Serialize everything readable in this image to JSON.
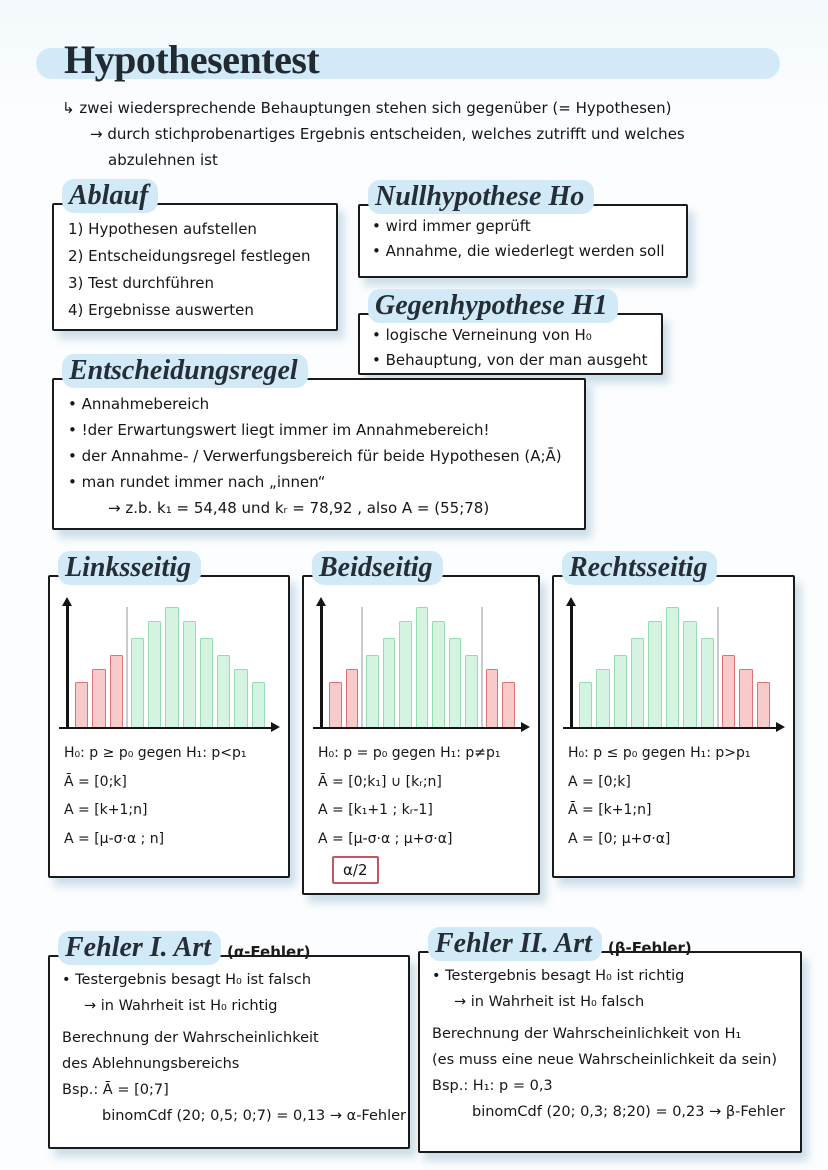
{
  "title": "Hypothesentest",
  "intro": {
    "line1": "↳ zwei wiedersprechende Behauptungen stehen sich gegenüber (= Hypothesen)",
    "line2": "→ durch stichprobenartiges Ergebnis entscheiden, welches zutrifft und welches",
    "line3": "abzulehnen ist"
  },
  "ablauf": {
    "heading": "Ablauf",
    "items": [
      "1) Hypothesen aufstellen",
      "2) Entscheidungsregel festlegen",
      "3) Test durchführen",
      "4) Ergebnisse auswerten"
    ]
  },
  "nullhypothese": {
    "heading": "Nullhypothese Ho",
    "items": [
      "• wird immer geprüft",
      "• Annahme, die wiederlegt werden soll"
    ]
  },
  "gegenhypothese": {
    "heading": "Gegenhypothese H1",
    "items": [
      "• logische Verneinung von H₀",
      "• Behauptung, von der man ausgeht"
    ]
  },
  "entscheidungsregel": {
    "heading": "Entscheidungsregel",
    "items": [
      "• Annahmebereich",
      "• !der Erwartungswert liegt immer im Annahmebereich!",
      "• der Annahme- / Verwerfungsbereich für beide Hypothesen (A;Ā)",
      "• man rundet immer nach „innen“"
    ],
    "example": "→ z.b.  k₁ = 54,48  und kᵣ = 78,92 , also  A = (55;78)"
  },
  "tests": {
    "links": {
      "heading": "Linksseitig",
      "hypothesis": "H₀: p ≥ p₀  gegen  H₁: p<p₁",
      "lines": [
        "Ā = [0;k]",
        "A = [k+1;n]",
        "A = [μ-σ·α ; n]"
      ]
    },
    "beid": {
      "heading": "Beidseitig",
      "hypothesis": "H₀: p = p₀  gegen  H₁: p≠p₁",
      "lines": [
        "Ā = [0;k₁] ∪ [kᵣ;n]",
        "A = [k₁+1 ; kᵣ-1]",
        "A = [μ-σ·α ; μ+σ·α]"
      ],
      "note": "α/2"
    },
    "rechts": {
      "heading": "Rechtsseitig",
      "hypothesis": "H₀: p ≤ p₀  gegen  H₁: p>p₁",
      "lines": [
        "A = [0;k]",
        "Ā = [k+1;n]",
        "A = [0; μ+σ·α]"
      ]
    }
  },
  "chart_data": {
    "colors": {
      "green_fill": "#d4f3e0",
      "green_border": "#95ddb1",
      "red_fill": "#f9caca",
      "red_border": "#db7373",
      "divider": "#c9ccce",
      "axis": "#141414",
      "highlight": "#d2eaf7"
    },
    "links": {
      "type": "histogram",
      "bar_heights_percent": [
        37,
        48,
        60,
        74,
        88,
        100,
        88,
        74,
        60,
        48,
        37
      ],
      "bar_colors": [
        "r",
        "r",
        "r",
        "g",
        "g",
        "g",
        "g",
        "g",
        "g",
        "g",
        "g"
      ],
      "dividers": [
        3
      ]
    },
    "beid": {
      "type": "histogram",
      "bar_heights_percent": [
        37,
        48,
        60,
        74,
        88,
        100,
        88,
        74,
        60,
        48,
        37
      ],
      "bar_colors": [
        "r",
        "r",
        "g",
        "g",
        "g",
        "g",
        "g",
        "g",
        "g",
        "r",
        "r"
      ],
      "dividers": [
        2,
        9
      ]
    },
    "rechts": {
      "type": "histogram",
      "bar_heights_percent": [
        37,
        48,
        60,
        74,
        88,
        100,
        88,
        74,
        60,
        48,
        37
      ],
      "bar_colors": [
        "g",
        "g",
        "g",
        "g",
        "g",
        "g",
        "g",
        "g",
        "r",
        "r",
        "r"
      ],
      "dividers": [
        8
      ]
    }
  },
  "fehler1": {
    "heading": "Fehler I. Art",
    "sub": "(α-Fehler)",
    "bullet1": "• Testergebnis besagt H₀ ist falsch",
    "bullet2": "→ in Wahrheit ist H₀ richtig",
    "desc1": "Berechnung der Wahrscheinlichkeit",
    "desc2": "des Ablehnungsbereichs",
    "example": "Bsp.:  Ā = [0;7]",
    "calc": "binomCdf (20; 0,5; 0;7) = 0,13  → α-Fehler"
  },
  "fehler2": {
    "heading": "Fehler II. Art",
    "sub": "(β-Fehler)",
    "bullet1": "• Testergebnis besagt H₀ ist richtig",
    "bullet2": "→ in Wahrheit ist H₀ falsch",
    "desc1": "Berechnung der Wahrscheinlichkeit von H₁",
    "desc2": "(es muss eine neue Wahrscheinlichkeit da sein)",
    "example": "Bsp.:  H₁: p = 0,3",
    "calc": "binomCdf (20; 0,3; 8;20) = 0,23  → β-Fehler"
  }
}
